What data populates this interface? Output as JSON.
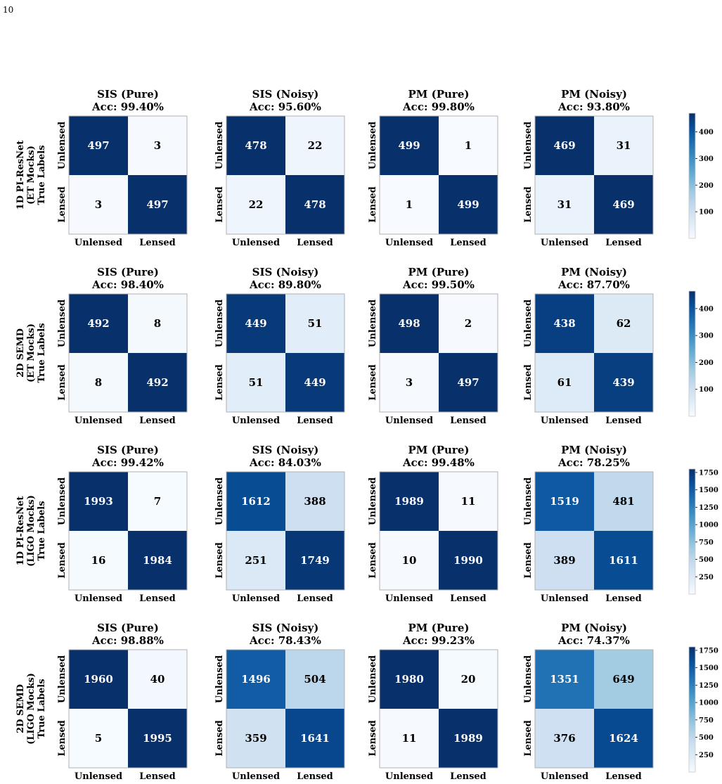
{
  "page_number": "10",
  "axis": {
    "x_ticks": [
      "Unlensed",
      "Lensed"
    ],
    "y_ticks": [
      "Unlensed",
      "Lensed"
    ]
  },
  "colormap": {
    "low": "#f7fbff",
    "high": "#08306b"
  },
  "chart_data": [
    {
      "type": "heatmap",
      "row_label": [
        "1D PI-ResNet",
        "(ET Mocks)",
        "True Labels"
      ],
      "colorbar": {
        "min": 0,
        "max": 470,
        "ticks": [
          100,
          200,
          300,
          400
        ]
      },
      "panels": [
        {
          "title": "SIS (Pure)",
          "accuracy": "Acc: 99.40%",
          "matrix": [
            [
              497,
              3
            ],
            [
              3,
              497
            ]
          ]
        },
        {
          "title": "SIS (Noisy)",
          "accuracy": "Acc: 95.60%",
          "matrix": [
            [
              478,
              22
            ],
            [
              22,
              478
            ]
          ]
        },
        {
          "title": "PM (Pure)",
          "accuracy": "Acc: 99.80%",
          "matrix": [
            [
              499,
              1
            ],
            [
              1,
              499
            ]
          ]
        },
        {
          "title": "PM (Noisy)",
          "accuracy": "Acc: 93.80%",
          "matrix": [
            [
              469,
              31
            ],
            [
              31,
              469
            ]
          ]
        }
      ]
    },
    {
      "type": "heatmap",
      "row_label": [
        "2D SEMD",
        "(ET Mocks)",
        "True Labels"
      ],
      "colorbar": {
        "min": 0,
        "max": 465,
        "ticks": [
          100,
          200,
          300,
          400
        ]
      },
      "panels": [
        {
          "title": "SIS (Pure)",
          "accuracy": "Acc: 98.40%",
          "matrix": [
            [
              492,
              8
            ],
            [
              8,
              492
            ]
          ]
        },
        {
          "title": "SIS (Noisy)",
          "accuracy": "Acc: 89.80%",
          "matrix": [
            [
              449,
              51
            ],
            [
              51,
              449
            ]
          ]
        },
        {
          "title": "PM (Pure)",
          "accuracy": "Acc: 99.50%",
          "matrix": [
            [
              498,
              2
            ],
            [
              3,
              497
            ]
          ]
        },
        {
          "title": "PM (Noisy)",
          "accuracy": "Acc: 87.70%",
          "matrix": [
            [
              438,
              62
            ],
            [
              61,
              439
            ]
          ]
        }
      ]
    },
    {
      "type": "heatmap",
      "row_label": [
        "1D PI-ResNet",
        "(LIGO Mocks)",
        "True Labels"
      ],
      "colorbar": {
        "min": 0,
        "max": 1800,
        "ticks": [
          250,
          500,
          750,
          1000,
          1250,
          1500,
          1750
        ]
      },
      "panels": [
        {
          "title": "SIS (Pure)",
          "accuracy": "Acc: 99.42%",
          "matrix": [
            [
              1993,
              7
            ],
            [
              16,
              1984
            ]
          ]
        },
        {
          "title": "SIS (Noisy)",
          "accuracy": "Acc: 84.03%",
          "matrix": [
            [
              1612,
              388
            ],
            [
              251,
              1749
            ]
          ]
        },
        {
          "title": "PM (Pure)",
          "accuracy": "Acc: 99.48%",
          "matrix": [
            [
              1989,
              11
            ],
            [
              10,
              1990
            ]
          ]
        },
        {
          "title": "PM (Noisy)",
          "accuracy": "Acc: 78.25%",
          "matrix": [
            [
              1519,
              481
            ],
            [
              389,
              1611
            ]
          ]
        }
      ]
    },
    {
      "type": "heatmap",
      "row_label": [
        "2D SEMD",
        "(LIGO Mocks)",
        "True Labels"
      ],
      "colorbar": {
        "min": 0,
        "max": 1800,
        "ticks": [
          250,
          500,
          750,
          1000,
          1250,
          1500,
          1750
        ]
      },
      "panels": [
        {
          "title": "SIS (Pure)",
          "accuracy": "Acc: 98.88%",
          "matrix": [
            [
              1960,
              40
            ],
            [
              5,
              1995
            ]
          ]
        },
        {
          "title": "SIS (Noisy)",
          "accuracy": "Acc: 78.43%",
          "matrix": [
            [
              1496,
              504
            ],
            [
              359,
              1641
            ]
          ]
        },
        {
          "title": "PM (Pure)",
          "accuracy": "Acc: 99.23%",
          "matrix": [
            [
              1980,
              20
            ],
            [
              11,
              1989
            ]
          ]
        },
        {
          "title": "PM (Noisy)",
          "accuracy": "Acc: 74.37%",
          "matrix": [
            [
              1351,
              649
            ],
            [
              376,
              1624
            ]
          ]
        }
      ]
    }
  ]
}
